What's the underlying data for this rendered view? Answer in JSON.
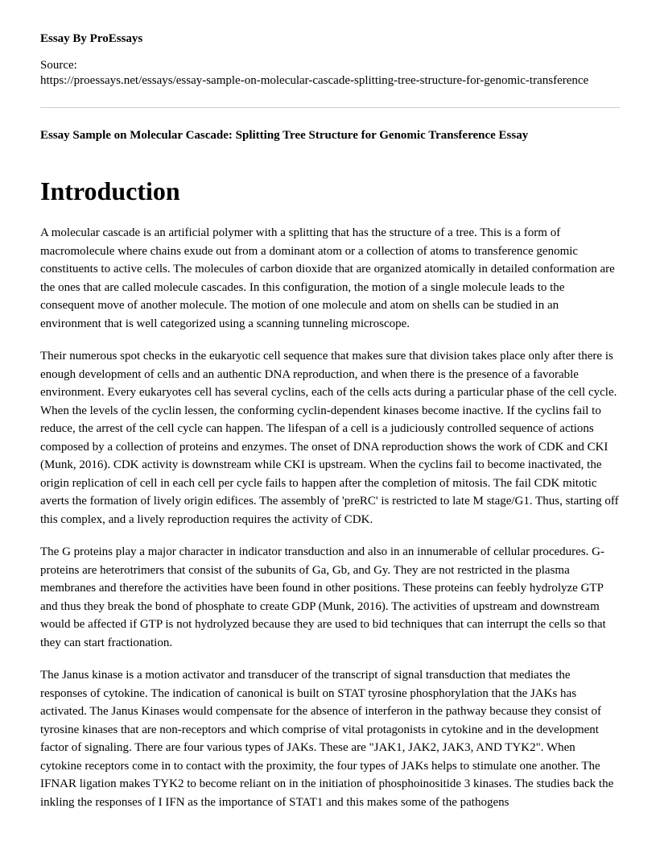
{
  "author_line": "Essay By ProEssays",
  "source_label": "Source:",
  "source_url": "https://proessays.net/essays/essay-sample-on-molecular-cascade-splitting-tree-structure-for-genomic-transference",
  "essay_title": "Essay Sample on Molecular Cascade: Splitting Tree Structure for Genomic Transference Essay",
  "heading": "Introduction",
  "paragraphs": {
    "p1": "A molecular cascade is an artificial polymer with a splitting that has the structure of a tree. This is a form of macromolecule where chains exude out from a dominant atom or a collection of atoms to transference genomic constituents to active cells. The molecules of carbon dioxide that are organized atomically in detailed conformation are the ones that are called molecule cascades. In this configuration, the motion of a single molecule leads to the consequent move of another molecule. The motion of one molecule and atom on shells can be studied in an environment that is well categorized using a scanning tunneling microscope.",
    "p2": "Their numerous spot checks in the eukaryotic cell sequence that makes sure that division takes place only after there is enough development of cells and an authentic DNA reproduction, and when there is the presence of a favorable environment. Every eukaryotes cell has several cyclins, each of the cells acts during a particular phase of the cell cycle. When the levels of the cyclin lessen, the conforming cyclin-dependent kinases become inactive. If the cyclins fail to reduce, the arrest of the cell cycle can happen. The lifespan of a cell is a judiciously controlled sequence of actions composed by a collection of proteins and enzymes. The onset of DNA reproduction shows the work of CDK and CKI (Munk, 2016). CDK activity is downstream while CKI is upstream. When the cyclins fail to become inactivated, the origin replication of cell in each cell per cycle fails to happen after the completion of mitosis. The fail CDK mitotic averts the formation of lively origin edifices. The assembly of 'preRC' is restricted to late M stage/G1. Thus, starting off this complex, and a lively reproduction requires the activity of CDK.",
    "p3": "The G proteins play a major character in indicator transduction and also in an innumerable of cellular procedures. G-proteins are heterotrimers that consist of the subunits of Ga, Gb, and Gy. They are not restricted in the plasma membranes and therefore the activities have been found in other positions. These proteins can feebly hydrolyze GTP and thus they break the bond of phosphate to create GDP (Munk, 2016). The activities of upstream and downstream would be affected if GTP is not hydrolyzed because they are used to bid techniques that can interrupt the cells so that they can start fractionation.",
    "p4": "The Janus kinase is a motion activator and transducer of the transcript of signal transduction that mediates the responses of cytokine. The indication of canonical is built on STAT tyrosine phosphorylation that the JAKs has activated. The Janus Kinases would compensate for the absence of interferon in the pathway because they consist of tyrosine kinases that are non-receptors and which comprise of vital protagonists in cytokine and in the development factor of signaling. There are four various types of JAKs. These are \"JAK1, JAK2, JAK3, AND TYK2\". When cytokine receptors come in to contact with the proximity, the four types of JAKs helps to stimulate one another. The IFNAR ligation makes TYK2 to become reliant on in the initiation of phosphoinositide 3 kinases. The studies back the inkling the responses of I IFN as the importance of STAT1 and this makes some of the pathogens"
  }
}
